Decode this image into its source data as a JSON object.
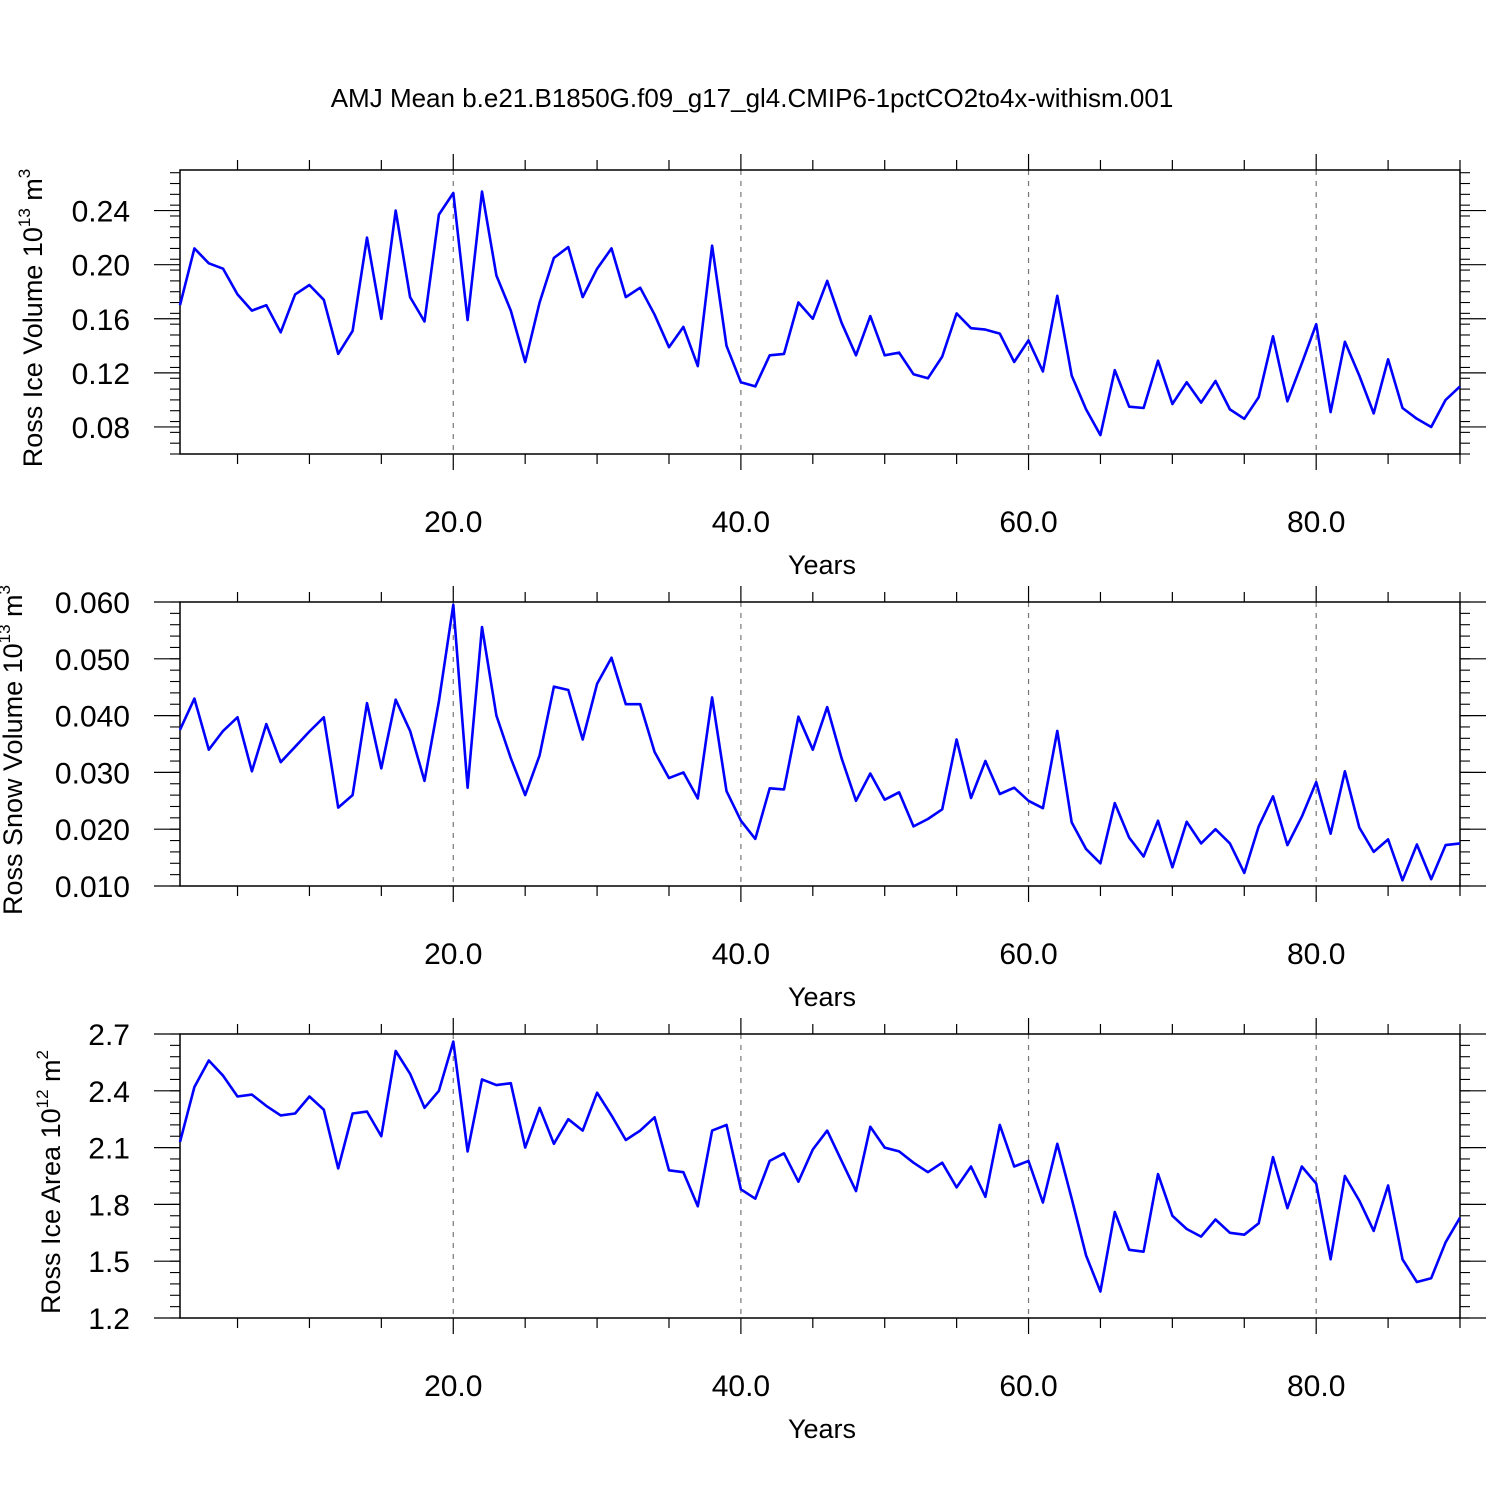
{
  "title": "AMJ Mean b.e21.B1850G.f09_g17_gl4.CMIP6-1pctCO2to4x-withism.001",
  "line_color": "#0000ff",
  "chart_data": [
    {
      "type": "line",
      "xlabel": "Years",
      "ylabel": "Ross Ice Volume 10",
      "ylabel_exp": "13",
      "ylabel_unit": " m",
      "ylabel_unit_exp": "3",
      "xlim": [
        1,
        90
      ],
      "ylim": [
        0.06,
        0.27
      ],
      "x_ticks": [
        20,
        40,
        60,
        80
      ],
      "x_tick_labels": [
        "20.0",
        "40.0",
        "60.0",
        "80.0"
      ],
      "y_ticks": [
        0.08,
        0.12,
        0.16,
        0.2,
        0.24
      ],
      "y_tick_labels": [
        "0.08",
        "0.12",
        "0.16",
        "0.20",
        "0.24"
      ],
      "grid": "vertical dashed at major x ticks",
      "series": [
        {
          "x": [
            1,
            2,
            3,
            4,
            5,
            6,
            7,
            8,
            9,
            10,
            11,
            12,
            13,
            14,
            15,
            16,
            17,
            18,
            19,
            20,
            21,
            22,
            23,
            24,
            25,
            26,
            27,
            28,
            29,
            30,
            31,
            32,
            33,
            34,
            35,
            36,
            37,
            38,
            39,
            40,
            41,
            42,
            43,
            44,
            45,
            46,
            47,
            48,
            49,
            50,
            51,
            52,
            53,
            54,
            55,
            56,
            57,
            58,
            59,
            60,
            61,
            62,
            63,
            64,
            65,
            66,
            67,
            68,
            69,
            70,
            71,
            72,
            73,
            74,
            75,
            76,
            77,
            78,
            79,
            80,
            81,
            82,
            83,
            84,
            85,
            86,
            87,
            88,
            89,
            90
          ],
          "values": [
            0.17,
            0.212,
            0.201,
            0.197,
            0.178,
            0.166,
            0.17,
            0.15,
            0.178,
            0.185,
            0.174,
            0.134,
            0.151,
            0.22,
            0.16,
            0.24,
            0.176,
            0.158,
            0.237,
            0.253,
            0.159,
            0.254,
            0.192,
            0.166,
            0.128,
            0.172,
            0.205,
            0.213,
            0.176,
            0.197,
            0.212,
            0.176,
            0.183,
            0.163,
            0.139,
            0.154,
            0.125,
            0.214,
            0.14,
            0.113,
            0.11,
            0.133,
            0.134,
            0.172,
            0.16,
            0.188,
            0.157,
            0.133,
            0.162,
            0.133,
            0.135,
            0.119,
            0.116,
            0.132,
            0.164,
            0.153,
            0.152,
            0.149,
            0.128,
            0.144,
            0.121,
            0.177,
            0.118,
            0.093,
            0.074,
            0.122,
            0.095,
            0.094,
            0.129,
            0.097,
            0.113,
            0.098,
            0.114,
            0.093,
            0.086,
            0.102,
            0.147,
            0.099,
            0.127,
            0.156,
            0.091,
            0.143,
            0.118,
            0.09,
            0.13,
            0.094,
            0.086,
            0.08,
            0.1,
            0.11
          ]
        }
      ]
    },
    {
      "type": "line",
      "xlabel": "Years",
      "ylabel": "Ross Snow Volume 10",
      "ylabel_exp": "13",
      "ylabel_unit": " m",
      "ylabel_unit_exp": "3",
      "xlim": [
        1,
        90
      ],
      "ylim": [
        0.01,
        0.06
      ],
      "x_ticks": [
        20,
        40,
        60,
        80
      ],
      "x_tick_labels": [
        "20.0",
        "40.0",
        "60.0",
        "80.0"
      ],
      "y_ticks": [
        0.01,
        0.02,
        0.03,
        0.04,
        0.05,
        0.06
      ],
      "y_tick_labels": [
        "0.010",
        "0.020",
        "0.030",
        "0.040",
        "0.050",
        "0.060"
      ],
      "grid": "vertical dashed at major x ticks",
      "series": [
        {
          "x": [
            1,
            2,
            3,
            4,
            5,
            6,
            7,
            8,
            9,
            10,
            11,
            12,
            13,
            14,
            15,
            16,
            17,
            18,
            19,
            20,
            21,
            22,
            23,
            24,
            25,
            26,
            27,
            28,
            29,
            30,
            31,
            32,
            33,
            34,
            35,
            36,
            37,
            38,
            39,
            40,
            41,
            42,
            43,
            44,
            45,
            46,
            47,
            48,
            49,
            50,
            51,
            52,
            53,
            54,
            55,
            56,
            57,
            58,
            59,
            60,
            61,
            62,
            63,
            64,
            65,
            66,
            67,
            68,
            69,
            70,
            71,
            72,
            73,
            74,
            75,
            76,
            77,
            78,
            79,
            80,
            81,
            82,
            83,
            84,
            85,
            86,
            87,
            88,
            89,
            90
          ],
          "values": [
            0.0375,
            0.043,
            0.034,
            0.0373,
            0.0397,
            0.0302,
            0.0385,
            0.0318,
            0.0345,
            0.0372,
            0.0397,
            0.0238,
            0.026,
            0.0422,
            0.0307,
            0.0428,
            0.0373,
            0.0285,
            0.0425,
            0.0595,
            0.0273,
            0.0556,
            0.04,
            0.0325,
            0.026,
            0.033,
            0.0451,
            0.0445,
            0.0358,
            0.0456,
            0.0502,
            0.042,
            0.042,
            0.0336,
            0.029,
            0.03,
            0.0254,
            0.0432,
            0.0267,
            0.0215,
            0.0183,
            0.0272,
            0.027,
            0.0398,
            0.034,
            0.0415,
            0.0325,
            0.025,
            0.0298,
            0.0252,
            0.0265,
            0.0205,
            0.0218,
            0.0235,
            0.0358,
            0.0255,
            0.032,
            0.0262,
            0.0273,
            0.025,
            0.0237,
            0.0373,
            0.0212,
            0.0165,
            0.014,
            0.0246,
            0.0185,
            0.0152,
            0.0215,
            0.0133,
            0.0213,
            0.0175,
            0.02,
            0.0175,
            0.0123,
            0.0205,
            0.0258,
            0.0172,
            0.0222,
            0.0283,
            0.0192,
            0.0302,
            0.0203,
            0.016,
            0.0182,
            0.011,
            0.0173,
            0.0112,
            0.0172,
            0.0175
          ]
        }
      ]
    },
    {
      "type": "line",
      "xlabel": "Years",
      "ylabel": "Ross Ice Area 10",
      "ylabel_exp": "12",
      "ylabel_unit": " m",
      "ylabel_unit_exp": "2",
      "xlim": [
        1,
        90
      ],
      "ylim": [
        1.2,
        2.7
      ],
      "x_ticks": [
        20,
        40,
        60,
        80
      ],
      "x_tick_labels": [
        "20.0",
        "40.0",
        "60.0",
        "80.0"
      ],
      "y_ticks": [
        1.2,
        1.5,
        1.8,
        2.1,
        2.4,
        2.7
      ],
      "y_tick_labels": [
        "1.2",
        "1.5",
        "1.8",
        "2.1",
        "2.4",
        "2.7"
      ],
      "grid": "vertical dashed at major x ticks",
      "series": [
        {
          "x": [
            1,
            2,
            3,
            4,
            5,
            6,
            7,
            8,
            9,
            10,
            11,
            12,
            13,
            14,
            15,
            16,
            17,
            18,
            19,
            20,
            21,
            22,
            23,
            24,
            25,
            26,
            27,
            28,
            29,
            30,
            31,
            32,
            33,
            34,
            35,
            36,
            37,
            38,
            39,
            40,
            41,
            42,
            43,
            44,
            45,
            46,
            47,
            48,
            49,
            50,
            51,
            52,
            53,
            54,
            55,
            56,
            57,
            58,
            59,
            60,
            61,
            62,
            63,
            64,
            65,
            66,
            67,
            68,
            69,
            70,
            71,
            72,
            73,
            74,
            75,
            76,
            77,
            78,
            79,
            80,
            81,
            82,
            83,
            84,
            85,
            86,
            87,
            88,
            89,
            90
          ],
          "values": [
            2.13,
            2.42,
            2.56,
            2.48,
            2.37,
            2.38,
            2.32,
            2.27,
            2.28,
            2.37,
            2.3,
            1.99,
            2.28,
            2.29,
            2.16,
            2.61,
            2.49,
            2.31,
            2.4,
            2.66,
            2.08,
            2.46,
            2.43,
            2.44,
            2.1,
            2.31,
            2.12,
            2.25,
            2.19,
            2.39,
            2.27,
            2.14,
            2.19,
            2.26,
            1.98,
            1.97,
            1.79,
            2.19,
            2.22,
            1.88,
            1.83,
            2.03,
            2.07,
            1.92,
            2.09,
            2.19,
            2.03,
            1.87,
            2.21,
            2.1,
            2.08,
            2.02,
            1.97,
            2.02,
            1.89,
            2.0,
            1.84,
            2.22,
            2.0,
            2.03,
            1.81,
            2.12,
            1.83,
            1.53,
            1.34,
            1.76,
            1.56,
            1.55,
            1.96,
            1.74,
            1.67,
            1.63,
            1.72,
            1.65,
            1.64,
            1.7,
            2.05,
            1.78,
            2.0,
            1.91,
            1.51,
            1.95,
            1.82,
            1.66,
            1.9,
            1.51,
            1.39,
            1.41,
            1.6,
            1.73
          ]
        }
      ]
    }
  ]
}
